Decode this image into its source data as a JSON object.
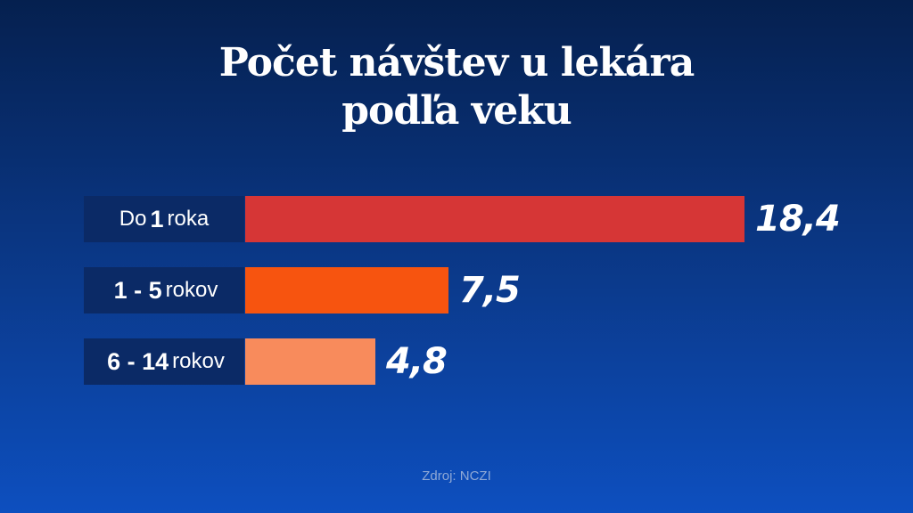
{
  "title_lines": [
    "Počet návštev u lekára",
    "podľa veku"
  ],
  "source": "Zdroj: NCZI",
  "colors": {
    "bar_1": "#d63636",
    "bar_2": "#f7540f",
    "bar_3": "#f88b5c"
  },
  "chart_data": {
    "type": "bar",
    "orientation": "horizontal",
    "title": "Počet návštev u lekára podľa veku",
    "categories": [
      {
        "pre": "Do",
        "num": "1",
        "post": "roka"
      },
      {
        "pre": "",
        "num": "1 - 5",
        "post": "rokov"
      },
      {
        "pre": "",
        "num": "6 - 14",
        "post": "rokov"
      }
    ],
    "values": [
      18.4,
      7.5,
      4.8
    ],
    "value_labels": [
      "18,4",
      "7,5",
      "4,8"
    ],
    "grid": false
  }
}
